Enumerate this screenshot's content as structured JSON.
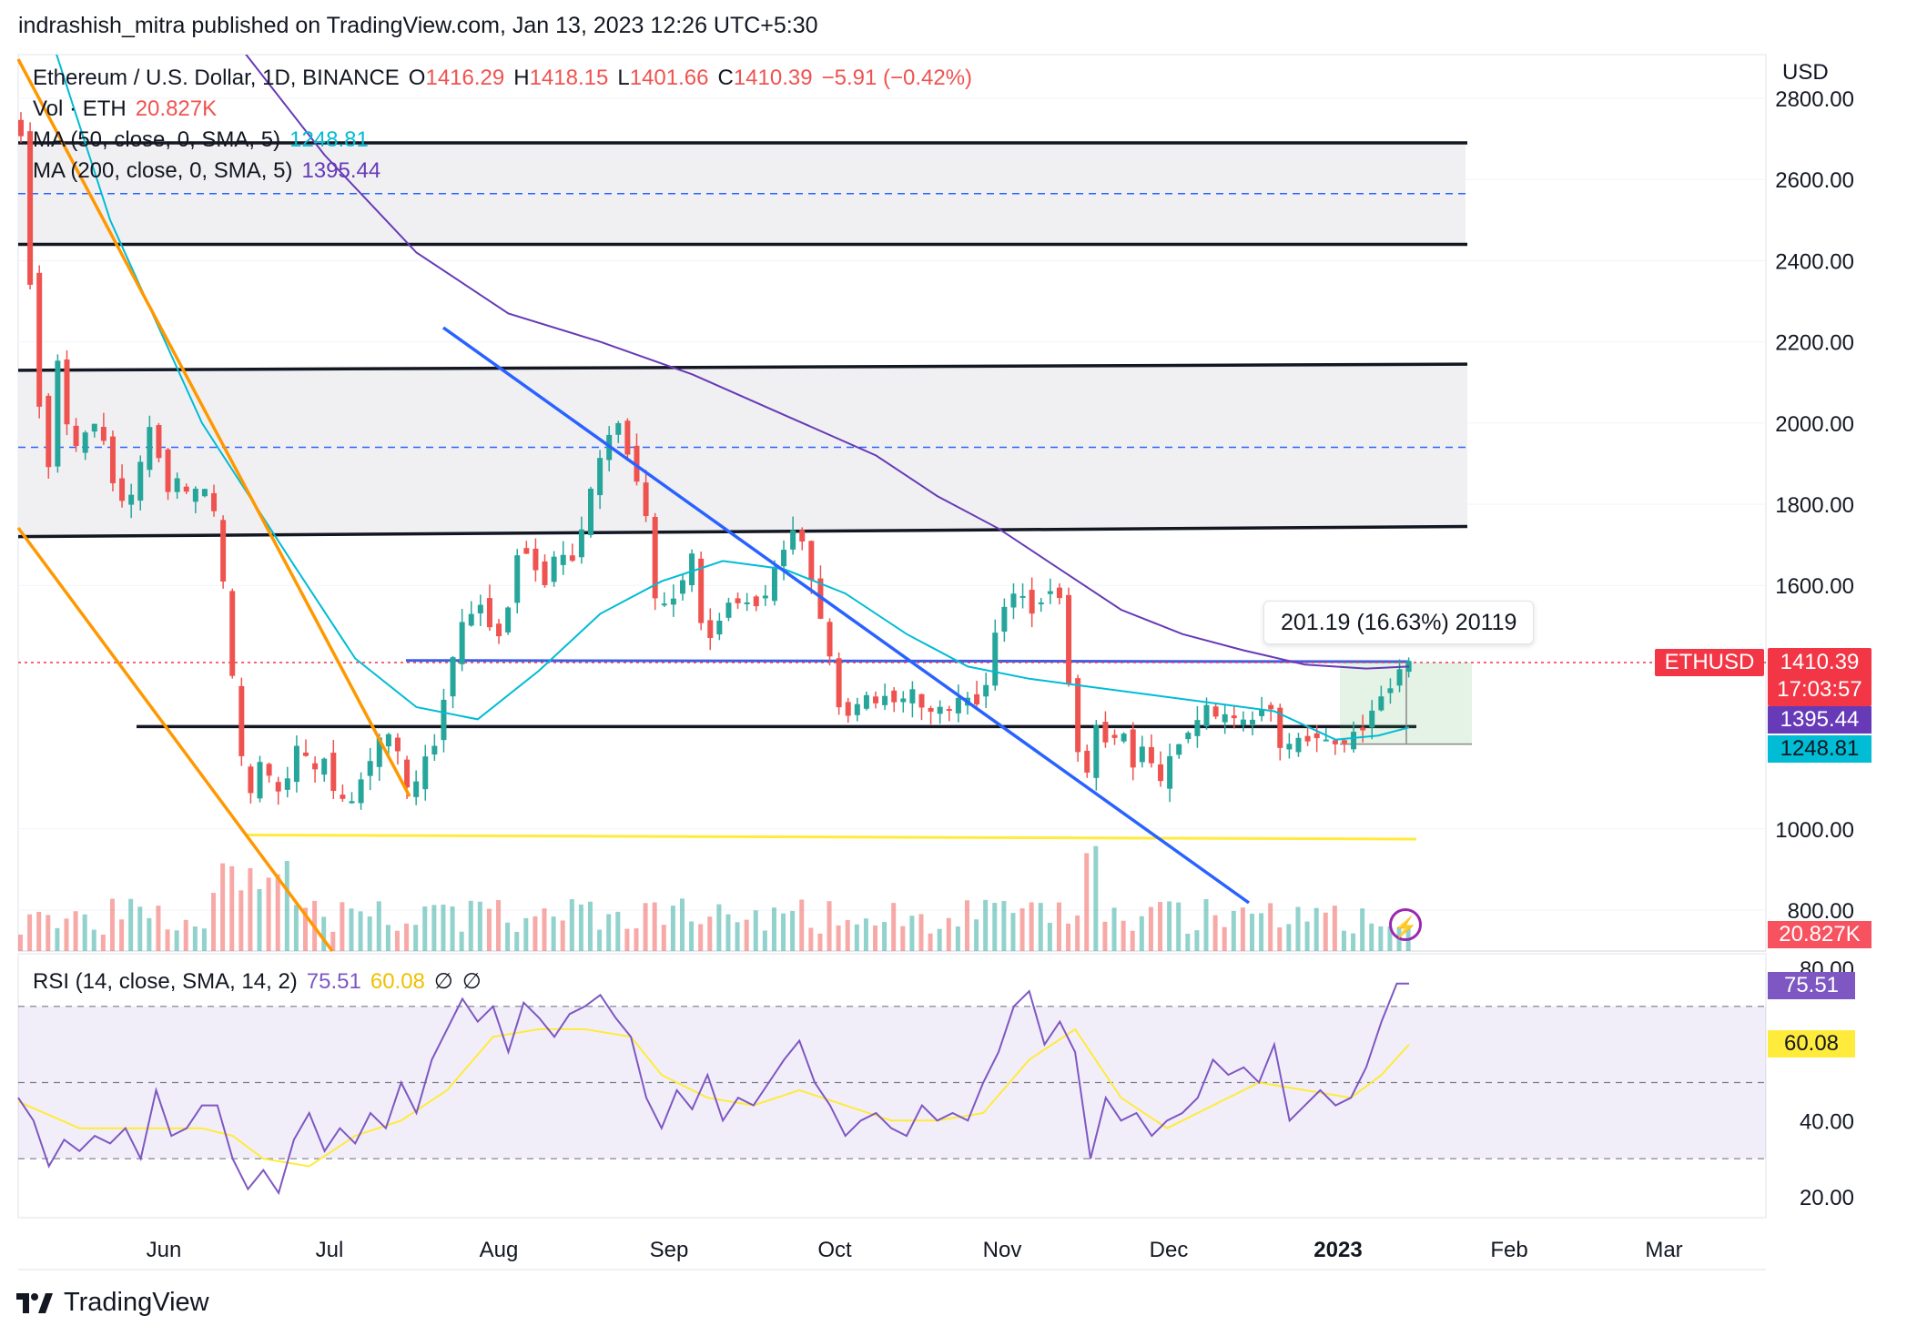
{
  "header": {
    "publisher": "indrashish_mitra published on TradingView.com, Jan 13, 2023 12:26 UTC+5:30"
  },
  "legend": {
    "symbol": "Ethereum / U.S. Dollar, 1D, BINANCE",
    "o_label": "O",
    "o": "1416.29",
    "h_label": "H",
    "h": "1418.15",
    "l_label": "L",
    "l": "1401.66",
    "c_label": "C",
    "c": "1410.39",
    "change": "−5.91 (−0.42%)",
    "vol_label": "Vol · ETH",
    "vol": "20.827K",
    "ma50_label": "MA (50, close, 0, SMA, 5)",
    "ma50": "1248.81",
    "ma200_label": "MA (200, close, 0, SMA, 5)",
    "ma200": "1395.44",
    "rsi_label": "RSI (14, close, SMA, 14, 2)",
    "rsi": "75.51",
    "rsi_ma": "60.08",
    "rsi_null1": "∅",
    "rsi_null2": "∅"
  },
  "axis": {
    "currency": "USD"
  },
  "measure": {
    "text": "201.19 (16.63%) 20119"
  },
  "price_tags": {
    "ticker": "ETHUSD",
    "last": "1410.39",
    "countdown": "17:03:57",
    "ma200": "1395.44",
    "ma50": "1248.81",
    "vol": "20.827K",
    "rsi": "75.51",
    "rsi_ma": "60.08"
  },
  "colors": {
    "up": "#26a69a",
    "down": "#ef5350",
    "ma50": "#00bcd4",
    "ma200": "#673ab7",
    "trend_blue": "#2962ff",
    "trend_orange": "#ff9800",
    "support_yellow": "#ffeb3b",
    "rsi": "#7e57c2",
    "rsi_ma": "#ffeb3b"
  },
  "footer": {
    "brand": "TradingView"
  },
  "chart_data": {
    "type": "candlestick",
    "price_axis": {
      "ticks": [
        "2800.00",
        "2600.00",
        "2400.00",
        "2200.00",
        "2000.00",
        "1800.00",
        "1600.00",
        "1000.00",
        "800.00"
      ],
      "range": [
        780,
        2860
      ]
    },
    "rsi_axis": {
      "ticks": [
        "80.00",
        "40.00",
        "20.00"
      ],
      "range": [
        15,
        85
      ],
      "bands": [
        30,
        50,
        70
      ]
    },
    "x_axis": {
      "ticks": [
        "Jun",
        "Jul",
        "Aug",
        "Sep",
        "Oct",
        "Nov",
        "Dec",
        "2023",
        "Feb",
        "Mar"
      ]
    },
    "price_path": [
      [
        0,
        2760
      ],
      [
        3,
        2700
      ],
      [
        6,
        2350
      ],
      [
        9,
        2050
      ],
      [
        12,
        1900
      ],
      [
        15,
        2150
      ],
      [
        18,
        2000
      ],
      [
        22,
        1920
      ],
      [
        26,
        2020
      ],
      [
        30,
        1950
      ],
      [
        34,
        1830
      ],
      [
        38,
        1790
      ],
      [
        42,
        1900
      ],
      [
        46,
        2010
      ],
      [
        50,
        1830
      ],
      [
        54,
        1860
      ],
      [
        58,
        1810
      ],
      [
        62,
        1850
      ],
      [
        66,
        1780
      ],
      [
        70,
        1540
      ],
      [
        74,
        1200
      ],
      [
        78,
        1080
      ],
      [
        82,
        1190
      ],
      [
        86,
        1070
      ],
      [
        90,
        1130
      ],
      [
        94,
        1220
      ],
      [
        98,
        1130
      ],
      [
        102,
        1170
      ],
      [
        106,
        1080
      ],
      [
        110,
        1050
      ],
      [
        114,
        1120
      ],
      [
        118,
        1190
      ],
      [
        122,
        1240
      ],
      [
        126,
        1190
      ],
      [
        130,
        1060
      ],
      [
        134,
        1160
      ],
      [
        138,
        1210
      ],
      [
        142,
        1360
      ],
      [
        146,
        1490
      ],
      [
        150,
        1530
      ],
      [
        154,
        1560
      ],
      [
        158,
        1450
      ],
      [
        162,
        1550
      ],
      [
        166,
        1720
      ],
      [
        170,
        1650
      ],
      [
        174,
        1610
      ],
      [
        178,
        1690
      ],
      [
        182,
        1640
      ],
      [
        186,
        1740
      ],
      [
        190,
        1860
      ],
      [
        194,
        1960
      ],
      [
        198,
        2000
      ],
      [
        202,
        1900
      ],
      [
        206,
        1830
      ],
      [
        210,
        1570
      ],
      [
        214,
        1540
      ],
      [
        218,
        1600
      ],
      [
        222,
        1670
      ],
      [
        226,
        1450
      ],
      [
        230,
        1500
      ],
      [
        234,
        1560
      ],
      [
        238,
        1560
      ],
      [
        242,
        1550
      ],
      [
        246,
        1580
      ],
      [
        250,
        1650
      ],
      [
        254,
        1740
      ],
      [
        258,
        1710
      ],
      [
        262,
        1580
      ],
      [
        266,
        1460
      ],
      [
        270,
        1300
      ],
      [
        274,
        1280
      ],
      [
        278,
        1330
      ],
      [
        282,
        1310
      ],
      [
        286,
        1330
      ],
      [
        290,
        1310
      ],
      [
        294,
        1340
      ],
      [
        298,
        1280
      ],
      [
        302,
        1300
      ],
      [
        306,
        1290
      ],
      [
        310,
        1330
      ],
      [
        314,
        1300
      ],
      [
        318,
        1360
      ],
      [
        322,
        1520
      ],
      [
        326,
        1580
      ],
      [
        330,
        1570
      ],
      [
        334,
        1530
      ],
      [
        338,
        1600
      ],
      [
        342,
        1570
      ],
      [
        346,
        1290
      ],
      [
        350,
        1100
      ],
      [
        354,
        1250
      ],
      [
        358,
        1210
      ],
      [
        362,
        1250
      ],
      [
        366,
        1160
      ],
      [
        370,
        1220
      ],
      [
        374,
        1100
      ],
      [
        378,
        1170
      ],
      [
        382,
        1230
      ],
      [
        386,
        1250
      ],
      [
        390,
        1300
      ],
      [
        394,
        1270
      ],
      [
        398,
        1280
      ],
      [
        402,
        1260
      ],
      [
        406,
        1270
      ],
      [
        410,
        1330
      ],
      [
        414,
        1200
      ],
      [
        418,
        1210
      ],
      [
        422,
        1220
      ],
      [
        426,
        1230
      ],
      [
        430,
        1210
      ],
      [
        434,
        1210
      ],
      [
        438,
        1230
      ],
      [
        442,
        1260
      ],
      [
        446,
        1320
      ],
      [
        450,
        1350
      ],
      [
        454,
        1410
      ]
    ],
    "ma50_path": [
      [
        0,
        3200
      ],
      [
        30,
        2500
      ],
      [
        60,
        2000
      ],
      [
        90,
        1650
      ],
      [
        110,
        1420
      ],
      [
        130,
        1300
      ],
      [
        150,
        1270
      ],
      [
        170,
        1390
      ],
      [
        190,
        1530
      ],
      [
        210,
        1610
      ],
      [
        230,
        1660
      ],
      [
        250,
        1640
      ],
      [
        270,
        1580
      ],
      [
        290,
        1480
      ],
      [
        310,
        1400
      ],
      [
        330,
        1370
      ],
      [
        350,
        1350
      ],
      [
        370,
        1330
      ],
      [
        390,
        1310
      ],
      [
        410,
        1290
      ],
      [
        430,
        1220
      ],
      [
        444,
        1230
      ],
      [
        454,
        1250
      ]
    ],
    "ma200_path": [
      [
        70,
        2950
      ],
      [
        100,
        2660
      ],
      [
        130,
        2420
      ],
      [
        160,
        2270
      ],
      [
        190,
        2200
      ],
      [
        220,
        2120
      ],
      [
        250,
        2020
      ],
      [
        280,
        1920
      ],
      [
        300,
        1820
      ],
      [
        320,
        1740
      ],
      [
        340,
        1640
      ],
      [
        360,
        1540
      ],
      [
        380,
        1480
      ],
      [
        400,
        1440
      ],
      [
        420,
        1405
      ],
      [
        440,
        1395
      ],
      [
        454,
        1400
      ]
    ],
    "rsi_path": [
      [
        0,
        46
      ],
      [
        5,
        40
      ],
      [
        10,
        28
      ],
      [
        15,
        35
      ],
      [
        20,
        32
      ],
      [
        25,
        36
      ],
      [
        30,
        34
      ],
      [
        35,
        38
      ],
      [
        40,
        30
      ],
      [
        45,
        48
      ],
      [
        50,
        36
      ],
      [
        55,
        38
      ],
      [
        60,
        44
      ],
      [
        65,
        44
      ],
      [
        70,
        30
      ],
      [
        75,
        22
      ],
      [
        80,
        27
      ],
      [
        85,
        21
      ],
      [
        90,
        35
      ],
      [
        95,
        42
      ],
      [
        100,
        32
      ],
      [
        105,
        38
      ],
      [
        110,
        34
      ],
      [
        115,
        42
      ],
      [
        120,
        38
      ],
      [
        125,
        50
      ],
      [
        130,
        42
      ],
      [
        135,
        56
      ],
      [
        140,
        64
      ],
      [
        145,
        72
      ],
      [
        150,
        66
      ],
      [
        155,
        70
      ],
      [
        160,
        58
      ],
      [
        165,
        71
      ],
      [
        170,
        67
      ],
      [
        175,
        62
      ],
      [
        180,
        68
      ],
      [
        185,
        70
      ],
      [
        190,
        73
      ],
      [
        195,
        67
      ],
      [
        200,
        62
      ],
      [
        205,
        46
      ],
      [
        210,
        38
      ],
      [
        215,
        48
      ],
      [
        220,
        43
      ],
      [
        225,
        52
      ],
      [
        230,
        40
      ],
      [
        235,
        46
      ],
      [
        240,
        44
      ],
      [
        245,
        50
      ],
      [
        250,
        56
      ],
      [
        255,
        61
      ],
      [
        260,
        50
      ],
      [
        265,
        44
      ],
      [
        270,
        36
      ],
      [
        275,
        40
      ],
      [
        280,
        42
      ],
      [
        285,
        38
      ],
      [
        290,
        36
      ],
      [
        295,
        44
      ],
      [
        300,
        40
      ],
      [
        305,
        42
      ],
      [
        310,
        40
      ],
      [
        315,
        50
      ],
      [
        320,
        58
      ],
      [
        325,
        70
      ],
      [
        330,
        74
      ],
      [
        335,
        60
      ],
      [
        340,
        66
      ],
      [
        345,
        58
      ],
      [
        350,
        30
      ],
      [
        355,
        46
      ],
      [
        360,
        40
      ],
      [
        365,
        42
      ],
      [
        370,
        36
      ],
      [
        375,
        40
      ],
      [
        380,
        42
      ],
      [
        385,
        46
      ],
      [
        390,
        56
      ],
      [
        395,
        52
      ],
      [
        400,
        54
      ],
      [
        405,
        50
      ],
      [
        410,
        60
      ],
      [
        415,
        40
      ],
      [
        420,
        44
      ],
      [
        425,
        48
      ],
      [
        430,
        44
      ],
      [
        435,
        46
      ],
      [
        440,
        54
      ],
      [
        445,
        66
      ],
      [
        450,
        76
      ],
      [
        454,
        76
      ]
    ],
    "rsi_ma_path": [
      [
        0,
        45
      ],
      [
        20,
        38
      ],
      [
        40,
        38
      ],
      [
        60,
        38
      ],
      [
        70,
        36
      ],
      [
        80,
        30
      ],
      [
        95,
        28
      ],
      [
        110,
        36
      ],
      [
        125,
        40
      ],
      [
        140,
        48
      ],
      [
        155,
        62
      ],
      [
        170,
        64
      ],
      [
        185,
        64
      ],
      [
        200,
        62
      ],
      [
        210,
        52
      ],
      [
        225,
        46
      ],
      [
        240,
        44
      ],
      [
        255,
        48
      ],
      [
        270,
        44
      ],
      [
        285,
        40
      ],
      [
        300,
        40
      ],
      [
        315,
        42
      ],
      [
        330,
        56
      ],
      [
        345,
        64
      ],
      [
        360,
        46
      ],
      [
        375,
        38
      ],
      [
        390,
        44
      ],
      [
        405,
        50
      ],
      [
        420,
        48
      ],
      [
        435,
        46
      ],
      [
        445,
        52
      ],
      [
        454,
        60
      ]
    ],
    "horizontal_levels": [
      2690,
      2440,
      2140,
      1740,
      1410,
      1250,
      980
    ],
    "dashed_levels": [
      2565,
      1940
    ]
  }
}
